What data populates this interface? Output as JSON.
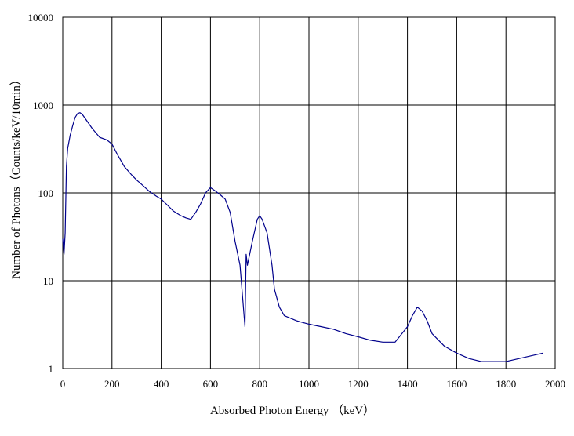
{
  "chart_data": {
    "type": "line",
    "title": "",
    "xlabel": "Absorbed Photon Energy （keV）",
    "ylabel": "Number of Photons（Counts/keV/10min）",
    "xlim": [
      0,
      2000
    ],
    "ylim": [
      1,
      10000
    ],
    "yscale": "log",
    "grid": true,
    "legend": "none",
    "x_ticks": [
      "0",
      "200",
      "400",
      "600",
      "800",
      "1000",
      "1200",
      "1400",
      "1600",
      "1800",
      "2000"
    ],
    "y_ticks": [
      "1",
      "10",
      "100",
      "1000",
      "10000"
    ],
    "line_color": "#00008B",
    "series": [
      {
        "x": [
          0,
          5,
          10,
          15,
          20,
          30,
          40,
          50,
          60,
          70,
          80,
          100,
          120,
          150,
          180,
          200,
          220,
          250,
          280,
          300,
          320,
          350,
          380,
          400,
          420,
          450,
          480,
          500,
          520,
          540,
          560,
          580,
          600,
          620,
          640,
          660,
          680,
          700,
          720,
          740,
          745,
          750,
          770,
          790,
          800,
          810,
          830,
          850,
          860,
          880,
          900,
          950,
          1000,
          1050,
          1100,
          1150,
          1200,
          1250,
          1300,
          1350,
          1400,
          1420,
          1440,
          1460,
          1480,
          1500,
          1550,
          1600,
          1650,
          1700,
          1800,
          1950
        ],
        "y": [
          30,
          20,
          35,
          200,
          320,
          450,
          580,
          720,
          800,
          820,
          780,
          650,
          540,
          430,
          400,
          360,
          280,
          200,
          160,
          140,
          125,
          105,
          92,
          85,
          75,
          62,
          55,
          52,
          50,
          60,
          75,
          100,
          115,
          105,
          95,
          85,
          60,
          28,
          15,
          3,
          20,
          15,
          28,
          50,
          55,
          50,
          35,
          15,
          8,
          5,
          4,
          3.5,
          3.2,
          3,
          2.8,
          2.5,
          2.3,
          2.1,
          2,
          2,
          3,
          4,
          5,
          4.5,
          3.5,
          2.5,
          1.8,
          1.5,
          1.3,
          1.2,
          1.2,
          1.5
        ]
      }
    ]
  }
}
